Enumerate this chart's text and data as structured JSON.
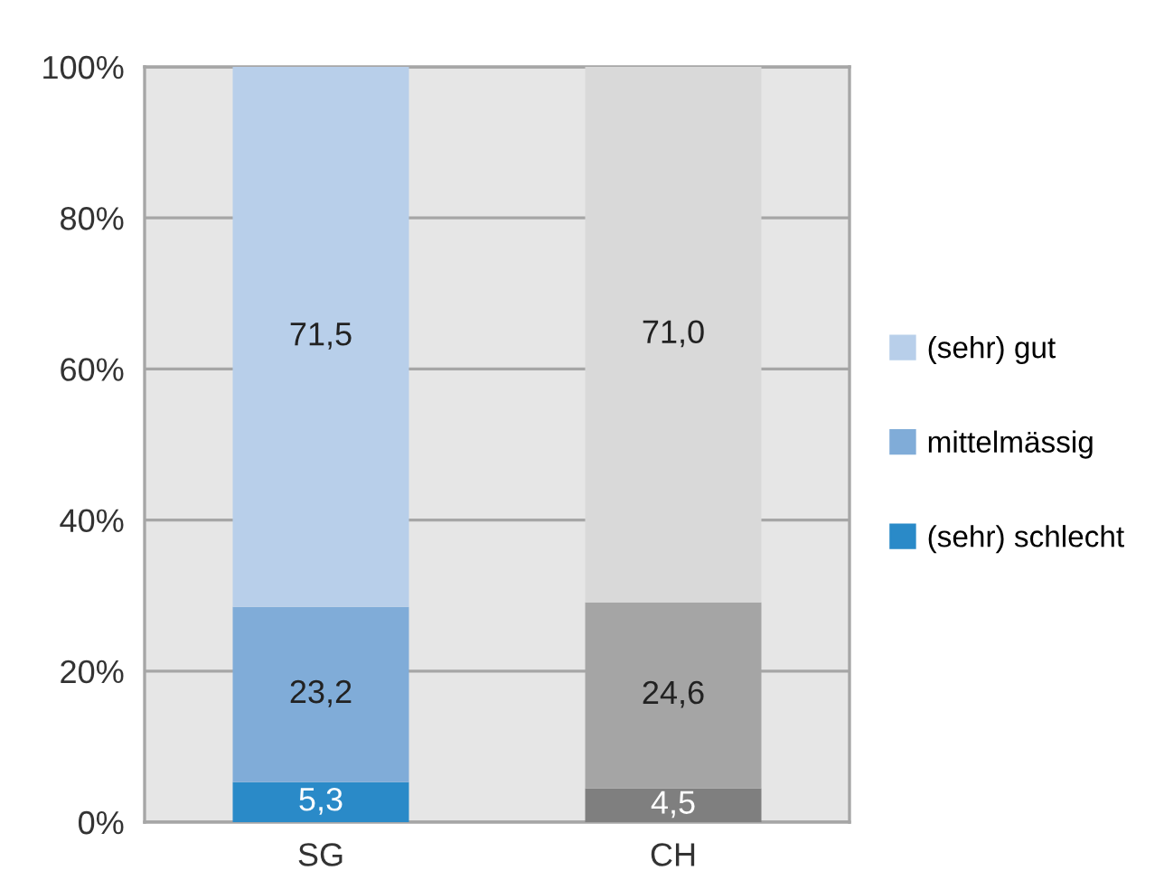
{
  "chart_data": {
    "type": "bar",
    "stacked": true,
    "categories": [
      "SG",
      "CH"
    ],
    "series": [
      {
        "name": "(sehr) schlecht",
        "color": "#2a8ac8",
        "colors": [
          "#2a8ac8",
          "#7f7f7f"
        ],
        "values": [
          5.3,
          4.5
        ],
        "value_labels": [
          "5,3",
          "4,5"
        ]
      },
      {
        "name": "mittelmässig",
        "color": "#80acd8",
        "colors": [
          "#80acd8",
          "#a5a5a5"
        ],
        "values": [
          23.2,
          24.6
        ],
        "value_labels": [
          "23,2",
          "24,6"
        ]
      },
      {
        "name": "(sehr) gut",
        "color": "#b8cfea",
        "colors": [
          "#b8cfea",
          "#d9d9d9"
        ],
        "values": [
          71.5,
          71.0
        ],
        "value_labels": [
          "71,5",
          "71,0"
        ]
      }
    ],
    "ylim": [
      0,
      100
    ],
    "yticks": [
      {
        "value": 0,
        "label": "0%"
      },
      {
        "value": 20,
        "label": "20%"
      },
      {
        "value": 40,
        "label": "40%"
      },
      {
        "value": 60,
        "label": "60%"
      },
      {
        "value": 80,
        "label": "80%"
      },
      {
        "value": 100,
        "label": "100%"
      }
    ],
    "grid": "y",
    "legend": "right"
  }
}
